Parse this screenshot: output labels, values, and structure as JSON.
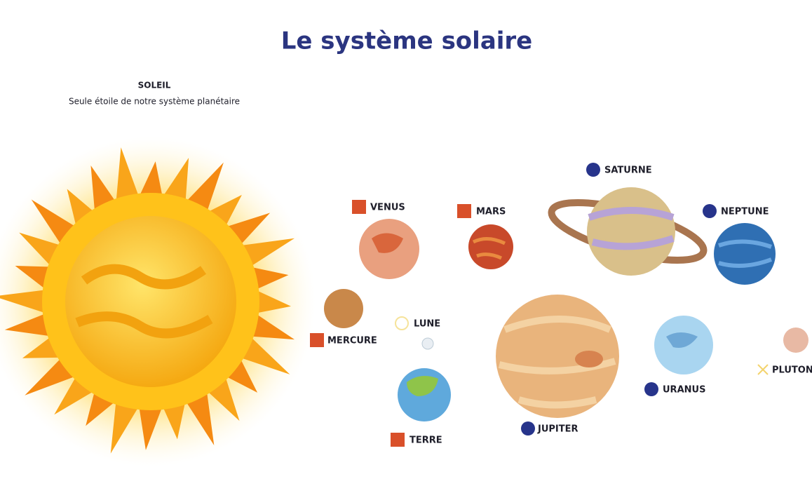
{
  "title": "Le système solaire",
  "sun": {
    "name": "SOLEIL",
    "description": "Seule étoile de notre système planétaire"
  },
  "bodies": [
    {
      "label": "VENUS"
    },
    {
      "label": "MARS"
    },
    {
      "label": "MERCURE"
    },
    {
      "label": "LUNE"
    },
    {
      "label": "TERRE"
    },
    {
      "label": "JUPITER"
    },
    {
      "label": "SATURNE"
    },
    {
      "label": "NEPTUNE"
    },
    {
      "label": "URANUS"
    },
    {
      "label": "PLUTON"
    }
  ]
}
